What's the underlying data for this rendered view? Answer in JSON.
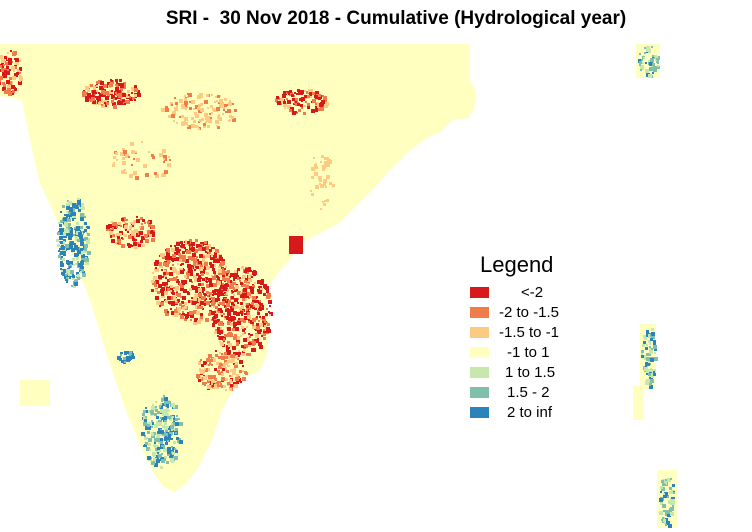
{
  "title": "SRI -  30 Nov 2018 - Cumulative (Hydrological year)",
  "legend": {
    "title": "Legend",
    "items": [
      {
        "label": "<-2",
        "color": "#d7191c"
      },
      {
        "label": "-2 to -1.5",
        "color": "#f07c4a"
      },
      {
        "label": "-1.5 to -1",
        "color": "#fec980"
      },
      {
        "label": "-1 to 1",
        "color": "#ffffbf"
      },
      {
        "label": "1 to 1.5",
        "color": "#c7e8ad"
      },
      {
        "label": "1.5 - 2",
        "color": "#80bfab"
      },
      {
        "label": "2 to inf",
        "color": "#2b83ba"
      }
    ]
  }
}
